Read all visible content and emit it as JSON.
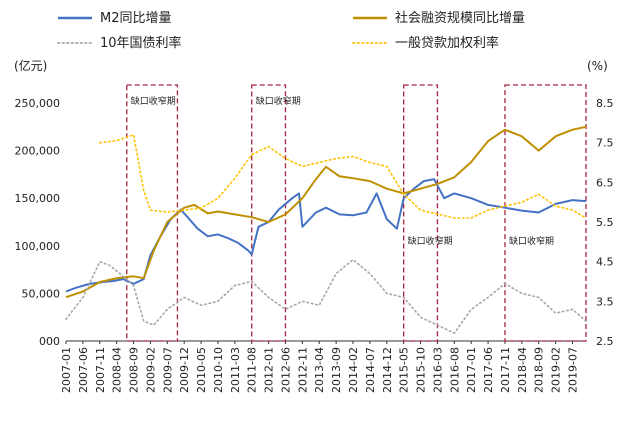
{
  "chart_data": {
    "type": "line",
    "legend": [
      {
        "key": "m2",
        "label": "M2同比增量",
        "color": "#4472c4",
        "style": "solid"
      },
      {
        "key": "tsf",
        "label": "社会融资规模同比增量",
        "color": "#bf9000",
        "style": "solid"
      },
      {
        "key": "bond10y",
        "label": "10年国债利率",
        "color": "#a6a6a6",
        "style": "dotted"
      },
      {
        "key": "loanrate",
        "label": "一般贷款加权利率",
        "color": "#ffc000",
        "style": "dotted"
      }
    ],
    "ylabel_left": "(亿元)",
    "ylabel_right": "(%)",
    "y_left": {
      "min": 0,
      "max": 250000,
      "ticks": [
        0,
        50000,
        100000,
        150000,
        200000,
        250000
      ],
      "tick_labels": [
        "000",
        "50,000",
        "100,000",
        "150,000",
        "200,000",
        "250,000"
      ]
    },
    "y_right": {
      "min": 2.5,
      "max": 8.5,
      "ticks": [
        2.5,
        3.5,
        4.5,
        5.5,
        6.5,
        7.5,
        8.5
      ],
      "tick_labels": [
        "2.5",
        "3.5",
        "4.5",
        "5.5",
        "6.5",
        "7.5",
        "8.5"
      ]
    },
    "x": {
      "start": "2007-01",
      "end": "2019-11",
      "tick_labels": [
        "2007-01",
        "2007-06",
        "2007-11",
        "2008-04",
        "2008-09",
        "2009-02",
        "2009-07",
        "2009-12",
        "2010-05",
        "2010-10",
        "2011-03",
        "2011-08",
        "2012-01",
        "2012-06",
        "2012-11",
        "2013-04",
        "2013-09",
        "2014-02",
        "2014-07",
        "2014-12",
        "2015-05",
        "2015-10",
        "2016-03",
        "2016-08",
        "2017-01",
        "2017-06",
        "2017-11",
        "2018-04",
        "2018-09",
        "2019-02",
        "2019-07"
      ]
    },
    "annotations": [
      {
        "label": "缺口收窄期",
        "from": "2008-07",
        "to": "2009-10",
        "label_pos": "top"
      },
      {
        "label": "缺口收窄期",
        "from": "2011-08",
        "to": "2012-06",
        "label_pos": "top"
      },
      {
        "label": "缺口收窄期",
        "from": "2015-05",
        "to": "2016-03",
        "label_pos": "middle"
      },
      {
        "label": "缺口收窄期",
        "from": "2017-11",
        "to": "2019-11",
        "label_pos": "middle"
      }
    ],
    "series": [
      {
        "key": "m2",
        "axis": "left",
        "points": [
          [
            "2007-01",
            52000
          ],
          [
            "2007-04",
            56000
          ],
          [
            "2007-08",
            60000
          ],
          [
            "2007-12",
            62000
          ],
          [
            "2008-03",
            63000
          ],
          [
            "2008-06",
            65000
          ],
          [
            "2008-09",
            60000
          ],
          [
            "2008-12",
            65000
          ],
          [
            "2009-02",
            90000
          ],
          [
            "2009-05",
            110000
          ],
          [
            "2009-08",
            128000
          ],
          [
            "2009-11",
            138000
          ],
          [
            "2010-01",
            130000
          ],
          [
            "2010-04",
            118000
          ],
          [
            "2010-07",
            110000
          ],
          [
            "2010-10",
            112000
          ],
          [
            "2011-01",
            108000
          ],
          [
            "2011-04",
            103000
          ],
          [
            "2011-07",
            95000
          ],
          [
            "2011-08",
            91000
          ],
          [
            "2011-10",
            120000
          ],
          [
            "2012-01",
            125000
          ],
          [
            "2012-04",
            138000
          ],
          [
            "2012-08",
            150000
          ],
          [
            "2012-10",
            155000
          ],
          [
            "2012-11",
            120000
          ],
          [
            "2013-03",
            135000
          ],
          [
            "2013-06",
            140000
          ],
          [
            "2013-10",
            133000
          ],
          [
            "2014-02",
            132000
          ],
          [
            "2014-06",
            135000
          ],
          [
            "2014-09",
            155000
          ],
          [
            "2014-12",
            128000
          ],
          [
            "2015-03",
            118000
          ],
          [
            "2015-05",
            150000
          ],
          [
            "2015-08",
            160000
          ],
          [
            "2015-11",
            168000
          ],
          [
            "2016-02",
            170000
          ],
          [
            "2016-05",
            150000
          ],
          [
            "2016-08",
            155000
          ],
          [
            "2017-01",
            150000
          ],
          [
            "2017-06",
            143000
          ],
          [
            "2017-11",
            140000
          ],
          [
            "2018-04",
            137000
          ],
          [
            "2018-09",
            135000
          ],
          [
            "2019-02",
            144000
          ],
          [
            "2019-07",
            148000
          ],
          [
            "2019-11",
            147000
          ]
        ]
      },
      {
        "key": "tsf",
        "axis": "left",
        "points": [
          [
            "2007-01",
            46000
          ],
          [
            "2007-06",
            52000
          ],
          [
            "2007-11",
            62000
          ],
          [
            "2008-04",
            66000
          ],
          [
            "2008-09",
            68000
          ],
          [
            "2008-12",
            66000
          ],
          [
            "2009-03",
            95000
          ],
          [
            "2009-07",
            125000
          ],
          [
            "2009-12",
            140000
          ],
          [
            "2010-03",
            143000
          ],
          [
            "2010-07",
            134000
          ],
          [
            "2010-10",
            136000
          ],
          [
            "2011-03",
            133000
          ],
          [
            "2011-08",
            130000
          ],
          [
            "2012-01",
            125000
          ],
          [
            "2012-06",
            133000
          ],
          [
            "2012-11",
            150000
          ],
          [
            "2013-03",
            170000
          ],
          [
            "2013-06",
            183000
          ],
          [
            "2013-10",
            173000
          ],
          [
            "2014-02",
            171000
          ],
          [
            "2014-07",
            168000
          ],
          [
            "2014-12",
            160000
          ],
          [
            "2015-05",
            155000
          ],
          [
            "2015-10",
            160000
          ],
          [
            "2016-03",
            165000
          ],
          [
            "2016-08",
            172000
          ],
          [
            "2017-01",
            188000
          ],
          [
            "2017-06",
            210000
          ],
          [
            "2017-11",
            222000
          ],
          [
            "2018-04",
            215000
          ],
          [
            "2018-09",
            200000
          ],
          [
            "2019-02",
            215000
          ],
          [
            "2019-07",
            222000
          ],
          [
            "2019-11",
            225000
          ]
        ]
      },
      {
        "key": "bond10y",
        "axis": "right",
        "points": [
          [
            "2007-01",
            3.05
          ],
          [
            "2007-06",
            3.6
          ],
          [
            "2007-11",
            4.5
          ],
          [
            "2008-02",
            4.4
          ],
          [
            "2008-05",
            4.2
          ],
          [
            "2008-09",
            3.9
          ],
          [
            "2008-12",
            3.0
          ],
          [
            "2009-03",
            2.9
          ],
          [
            "2009-07",
            3.3
          ],
          [
            "2009-12",
            3.6
          ],
          [
            "2010-05",
            3.4
          ],
          [
            "2010-10",
            3.5
          ],
          [
            "2011-03",
            3.9
          ],
          [
            "2011-08",
            4.0
          ],
          [
            "2012-01",
            3.6
          ],
          [
            "2012-06",
            3.3
          ],
          [
            "2012-11",
            3.5
          ],
          [
            "2013-04",
            3.4
          ],
          [
            "2013-09",
            4.2
          ],
          [
            "2014-02",
            4.55
          ],
          [
            "2014-07",
            4.2
          ],
          [
            "2014-12",
            3.7
          ],
          [
            "2015-05",
            3.6
          ],
          [
            "2015-10",
            3.1
          ],
          [
            "2016-03",
            2.9
          ],
          [
            "2016-08",
            2.7
          ],
          [
            "2017-01",
            3.3
          ],
          [
            "2017-06",
            3.6
          ],
          [
            "2017-11",
            3.95
          ],
          [
            "2018-04",
            3.7
          ],
          [
            "2018-09",
            3.6
          ],
          [
            "2019-02",
            3.2
          ],
          [
            "2019-07",
            3.3
          ],
          [
            "2019-11",
            3.0
          ]
        ]
      },
      {
        "key": "loanrate",
        "axis": "right",
        "points": [
          [
            "2007-11",
            7.5
          ],
          [
            "2008-04",
            7.55
          ],
          [
            "2008-09",
            7.7
          ],
          [
            "2008-12",
            6.3
          ],
          [
            "2009-02",
            5.8
          ],
          [
            "2009-07",
            5.75
          ],
          [
            "2009-12",
            5.8
          ],
          [
            "2010-05",
            5.85
          ],
          [
            "2010-10",
            6.1
          ],
          [
            "2011-03",
            6.6
          ],
          [
            "2011-08",
            7.2
          ],
          [
            "2012-01",
            7.4
          ],
          [
            "2012-06",
            7.1
          ],
          [
            "2012-11",
            6.9
          ],
          [
            "2013-04",
            7.0
          ],
          [
            "2013-09",
            7.1
          ],
          [
            "2014-02",
            7.15
          ],
          [
            "2014-07",
            7.0
          ],
          [
            "2014-12",
            6.9
          ],
          [
            "2015-05",
            6.2
          ],
          [
            "2015-10",
            5.8
          ],
          [
            "2016-03",
            5.7
          ],
          [
            "2016-08",
            5.6
          ],
          [
            "2017-01",
            5.6
          ],
          [
            "2017-06",
            5.8
          ],
          [
            "2017-11",
            5.9
          ],
          [
            "2018-04",
            6.0
          ],
          [
            "2018-09",
            6.2
          ],
          [
            "2019-02",
            5.9
          ],
          [
            "2019-07",
            5.8
          ],
          [
            "2019-11",
            5.6
          ]
        ]
      }
    ]
  }
}
